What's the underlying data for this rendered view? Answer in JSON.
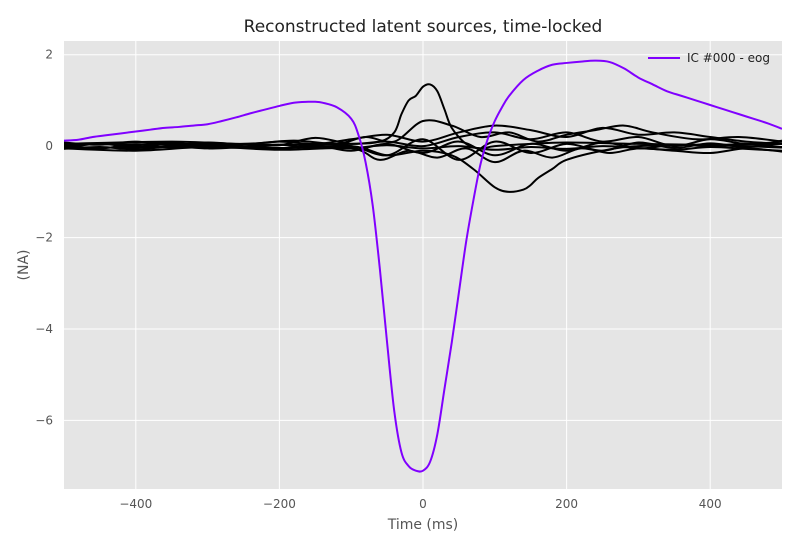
{
  "chart_data": {
    "type": "line",
    "title": "Reconstructed latent sources, time-locked",
    "xlabel": "Time (ms)",
    "ylabel": "(NA)",
    "xlim": [
      -500,
      500
    ],
    "ylim": [
      -7.5,
      2.3
    ],
    "xticks": [
      -400,
      -200,
      0,
      200,
      400
    ],
    "xtick_labels": [
      "−400",
      "−200",
      "0",
      "200",
      "400"
    ],
    "yticks": [
      2,
      0,
      -2,
      -4,
      -6
    ],
    "ytick_labels": [
      "2",
      "0",
      "−2",
      "−4",
      "−6"
    ],
    "grid": true,
    "legend_position": "top-right",
    "colors": {
      "background": "#e5e5e5",
      "grid": "#ffffff",
      "highlight": "#8000ff",
      "other": "#000000"
    },
    "series": [
      {
        "name": "IC #000 - eog",
        "color": "#8000ff",
        "x": [
          -500,
          -480,
          -460,
          -440,
          -420,
          -400,
          -380,
          -360,
          -340,
          -320,
          -300,
          -280,
          -260,
          -240,
          -220,
          -200,
          -180,
          -160,
          -150,
          -140,
          -120,
          -100,
          -90,
          -80,
          -70,
          -60,
          -50,
          -40,
          -30,
          -20,
          -10,
          0,
          10,
          20,
          30,
          40,
          50,
          60,
          70,
          80,
          90,
          100,
          110,
          120,
          140,
          160,
          180,
          200,
          220,
          240,
          260,
          280,
          300,
          320,
          340,
          360,
          380,
          400,
          420,
          440,
          460,
          480,
          500
        ],
        "y": [
          0.12,
          0.14,
          0.2,
          0.24,
          0.28,
          0.32,
          0.36,
          0.4,
          0.42,
          0.45,
          0.48,
          0.55,
          0.63,
          0.72,
          0.8,
          0.88,
          0.95,
          0.97,
          0.97,
          0.95,
          0.85,
          0.6,
          0.25,
          -0.35,
          -1.3,
          -2.7,
          -4.3,
          -5.8,
          -6.7,
          -7.0,
          -7.1,
          -7.1,
          -6.9,
          -6.3,
          -5.3,
          -4.3,
          -3.2,
          -2.1,
          -1.2,
          -0.4,
          0.15,
          0.55,
          0.85,
          1.1,
          1.45,
          1.65,
          1.78,
          1.82,
          1.85,
          1.87,
          1.84,
          1.7,
          1.5,
          1.35,
          1.2,
          1.1,
          1.0,
          0.9,
          0.8,
          0.7,
          0.6,
          0.5,
          0.38
        ]
      },
      {
        "color": "#000000",
        "x": [
          -500,
          -400,
          -300,
          -200,
          -100,
          -60,
          -40,
          -30,
          -20,
          -10,
          0,
          10,
          20,
          30,
          40,
          60,
          80,
          100,
          150,
          200,
          300,
          400,
          500
        ],
        "y": [
          0.05,
          0.04,
          0.05,
          0.03,
          0.05,
          0.1,
          0.3,
          0.7,
          1.0,
          1.1,
          1.3,
          1.35,
          1.2,
          0.8,
          0.4,
          0.05,
          -0.05,
          0.0,
          0.05,
          0.08,
          0.05,
          0.03,
          0.05
        ]
      },
      {
        "color": "#000000",
        "x": [
          -500,
          -400,
          -300,
          -200,
          -100,
          -50,
          0,
          40,
          70,
          100,
          120,
          140,
          150,
          160,
          180,
          200,
          250,
          300,
          400,
          500
        ],
        "y": [
          -0.02,
          -0.03,
          0.02,
          -0.04,
          0.0,
          -0.2,
          -0.1,
          -0.2,
          -0.5,
          -0.9,
          -1.0,
          -0.95,
          -0.85,
          -0.7,
          -0.5,
          -0.3,
          -0.1,
          0.0,
          0.02,
          -0.03
        ]
      },
      {
        "color": "#000000",
        "x": [
          -500,
          -350,
          -250,
          -180,
          -120,
          -80,
          -40,
          0,
          40,
          80,
          120,
          160,
          200,
          240,
          280,
          320,
          380,
          440,
          500
        ],
        "y": [
          0.05,
          0.1,
          0.05,
          0.12,
          0.05,
          0.2,
          0.1,
          0.55,
          0.45,
          0.2,
          0.3,
          0.1,
          0.25,
          0.35,
          0.45,
          0.3,
          0.15,
          0.2,
          0.1
        ]
      },
      {
        "color": "#000000",
        "x": [
          -500,
          -400,
          -300,
          -200,
          -100,
          -60,
          -20,
          20,
          60,
          100,
          140,
          180,
          220,
          260,
          300,
          350,
          400,
          450,
          500
        ],
        "y": [
          -0.05,
          -0.1,
          -0.02,
          -0.08,
          -0.05,
          -0.3,
          -0.1,
          -0.25,
          -0.05,
          -0.35,
          -0.1,
          -0.25,
          -0.05,
          -0.15,
          -0.05,
          -0.1,
          -0.15,
          -0.05,
          -0.12
        ]
      },
      {
        "color": "#000000",
        "x": [
          -500,
          -450,
          -400,
          -350,
          -300,
          -250,
          -200,
          -150,
          -100,
          -50,
          0,
          50,
          100,
          150,
          200,
          250,
          300,
          350,
          400,
          450,
          500
        ],
        "y": [
          0.08,
          0.03,
          0.1,
          0.02,
          0.08,
          0.04,
          0.1,
          0.05,
          0.15,
          0.25,
          0.1,
          0.3,
          0.45,
          0.35,
          0.2,
          0.4,
          0.25,
          0.3,
          0.2,
          0.1,
          0.05
        ]
      },
      {
        "color": "#000000",
        "x": [
          -500,
          -450,
          -400,
          -350,
          -300,
          -250,
          -200,
          -150,
          -100,
          -50,
          0,
          50,
          100,
          150,
          200,
          250,
          300,
          350,
          400,
          450,
          500
        ],
        "y": [
          -0.03,
          0.05,
          -0.02,
          0.06,
          -0.04,
          0.03,
          -0.05,
          0.02,
          -0.1,
          0.05,
          -0.15,
          0.1,
          -0.2,
          0.05,
          -0.1,
          0.08,
          -0.05,
          0.03,
          0.0,
          0.05,
          -0.02
        ]
      },
      {
        "color": "#000000",
        "x": [
          -500,
          -450,
          -400,
          -350,
          -300,
          -250,
          -200,
          -150,
          -100,
          -50,
          0,
          50,
          100,
          150,
          200,
          250,
          300,
          350,
          400,
          450,
          500
        ],
        "y": [
          0.02,
          -0.05,
          0.04,
          -0.03,
          0.06,
          -0.02,
          0.03,
          -0.05,
          0.0,
          -0.2,
          0.15,
          -0.3,
          0.1,
          -0.15,
          0.05,
          -0.1,
          0.08,
          -0.04,
          0.06,
          -0.02,
          0.12
        ]
      },
      {
        "color": "#000000",
        "x": [
          -500,
          -450,
          -400,
          -350,
          -300,
          -250,
          -200,
          -150,
          -100,
          -50,
          0,
          50,
          100,
          150,
          200,
          250,
          300,
          350,
          400,
          450,
          500
        ],
        "y": [
          0.0,
          0.06,
          0.02,
          0.08,
          0.0,
          0.05,
          0.02,
          0.18,
          0.05,
          0.1,
          0.0,
          0.2,
          0.3,
          0.15,
          0.3,
          0.1,
          0.2,
          0.0,
          0.15,
          0.05,
          0.1
        ]
      },
      {
        "color": "#000000",
        "x": [
          -500,
          -450,
          -400,
          -350,
          -300,
          -250,
          -200,
          -150,
          -100,
          -50,
          0,
          50,
          100,
          150,
          200,
          250,
          300,
          350,
          400,
          450,
          500
        ],
        "y": [
          -0.06,
          -0.02,
          -0.07,
          -0.01,
          -0.05,
          -0.03,
          -0.06,
          0.0,
          -0.04,
          0.02,
          -0.05,
          0.0,
          -0.08,
          -0.02,
          -0.06,
          0.0,
          -0.04,
          -0.08,
          -0.02,
          -0.06,
          -0.1
        ]
      }
    ]
  }
}
